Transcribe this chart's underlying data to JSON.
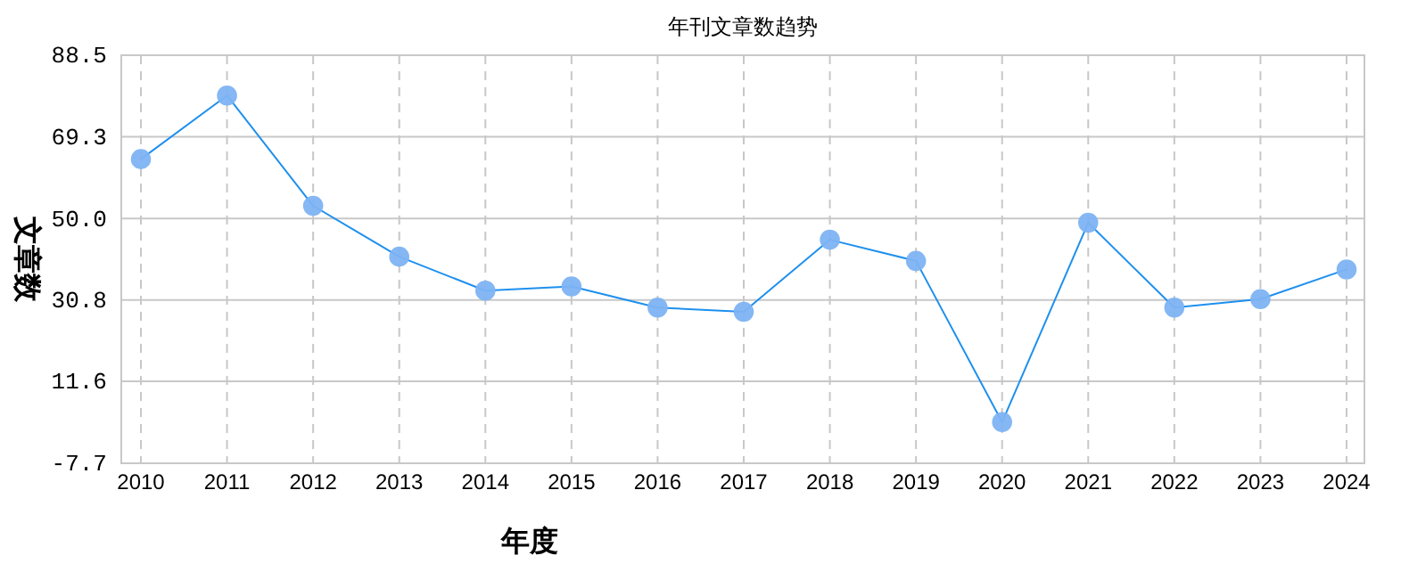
{
  "chart_data": {
    "type": "line",
    "title": "年刊文章数趋势",
    "xlabel": "年度",
    "ylabel": "文章数",
    "categories": [
      "2010",
      "2011",
      "2012",
      "2013",
      "2014",
      "2015",
      "2016",
      "2017",
      "2018",
      "2019",
      "2020",
      "2021",
      "2022",
      "2023",
      "2024"
    ],
    "series": [
      {
        "color": "#1e90ee",
        "values": [
          64,
          79,
          53,
          41,
          33,
          34,
          29,
          28,
          45,
          40,
          2,
          49,
          29,
          31,
          38
        ]
      }
    ],
    "ylim": [
      -7.7,
      88.5
    ],
    "yticks": [
      {
        "value": -7.7,
        "label": "-7.7"
      },
      {
        "value": 11.6,
        "label": "11.6"
      },
      {
        "value": 30.8,
        "label": "30.8"
      },
      {
        "value": 50,
        "label": "50.0"
      },
      {
        "value": 69.3,
        "label": "69.3"
      },
      {
        "value": 88.5,
        "label": "88.5"
      }
    ],
    "grid": true,
    "marker": "circle",
    "line_style": "solid"
  }
}
